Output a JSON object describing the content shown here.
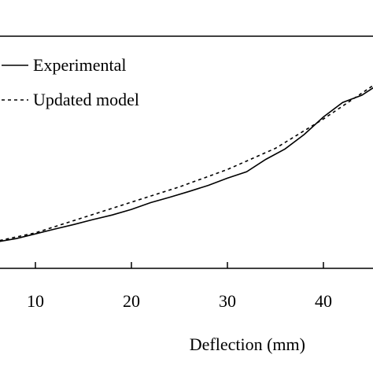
{
  "chart_data": {
    "type": "line",
    "title": "",
    "xlabel": "Deflection (mm)",
    "ylabel": "",
    "xlim": [
      5,
      45.5
    ],
    "ylim": [
      0,
      1
    ],
    "x_ticks": [
      10,
      20,
      30,
      40
    ],
    "x_tick_labels": [
      "10",
      "20",
      "30",
      "40"
    ],
    "grid": false,
    "legend_position": "top-left",
    "series": [
      {
        "name": "Experimental",
        "style": "solid",
        "x": [
          5,
          6,
          8,
          10,
          12,
          14,
          16,
          18,
          20,
          22,
          24,
          26,
          28,
          30,
          32,
          34,
          36,
          38,
          40,
          42,
          44,
          45.5
        ],
        "y": [
          0.0,
          0.006,
          0.022,
          0.045,
          0.068,
          0.09,
          0.114,
          0.136,
          0.163,
          0.196,
          0.222,
          0.25,
          0.279,
          0.314,
          0.345,
          0.405,
          0.455,
          0.525,
          0.61,
          0.68,
          0.715,
          0.76
        ]
      },
      {
        "name": "Updated model",
        "style": "dashed",
        "x": [
          5,
          10,
          15,
          20,
          25,
          30,
          35,
          40,
          45.5
        ],
        "y": [
          0.0,
          0.05,
          0.124,
          0.198,
          0.272,
          0.356,
          0.458,
          0.6,
          0.772
        ]
      }
    ]
  }
}
